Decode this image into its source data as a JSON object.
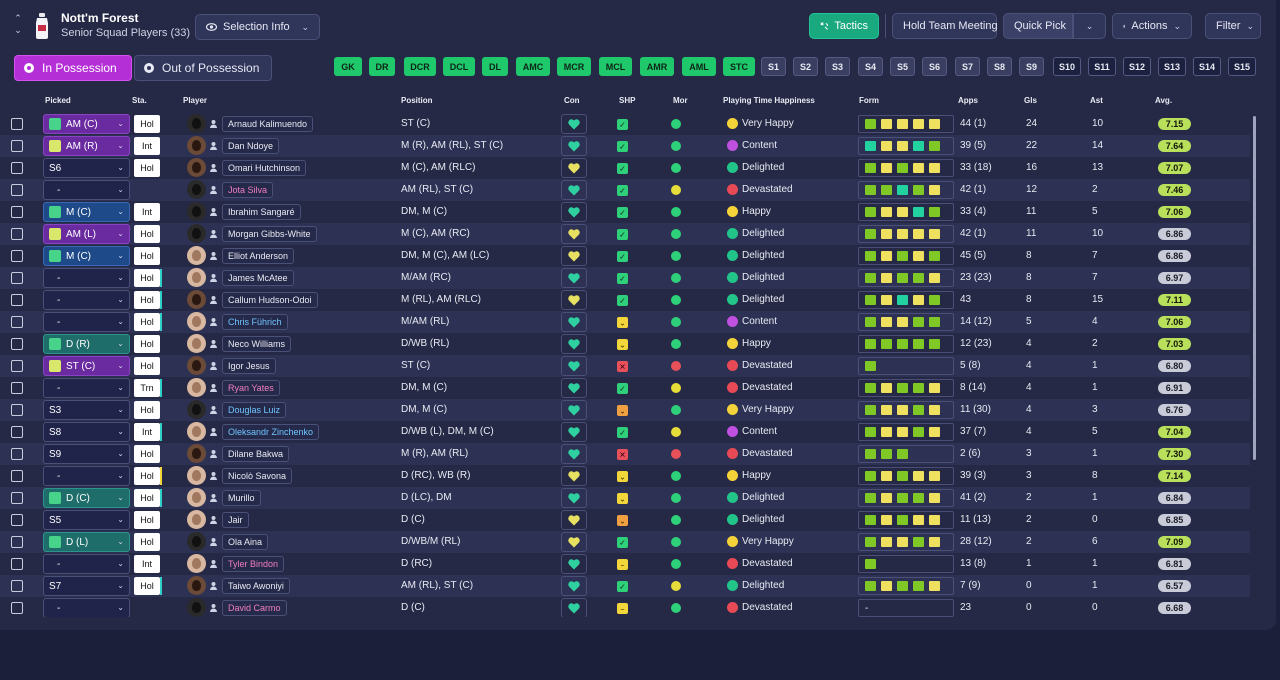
{
  "header": {
    "club_name": "Nott'm Forest",
    "club_sub": "Senior Squad Players (33)",
    "selection_info": "Selection Info",
    "tactics": "Tactics",
    "hold_team_meeting": "Hold Team Meeting",
    "quick_pick": "Quick Pick",
    "actions": "Actions",
    "filter": "Filter"
  },
  "tabs": {
    "in_possession": "In Possession",
    "out_of_possession": "Out of Possession"
  },
  "position_chips": [
    "GK",
    "DR",
    "DCR",
    "DCL",
    "DL",
    "AMC",
    "MCR",
    "MCL",
    "AMR",
    "AML",
    "STC"
  ],
  "set_chips": [
    "S1",
    "S2",
    "S3",
    "S4",
    "S5",
    "S6",
    "S7",
    "S8",
    "S9",
    "S10",
    "S11",
    "S12",
    "S13",
    "S14",
    "S15"
  ],
  "columns": {
    "picked": "Picked",
    "sta": "Sta.",
    "player": "Player",
    "position": "Position",
    "con": "Con",
    "shp": "SHP",
    "mor": "Mor",
    "pth": "Playing Time Happiness",
    "form": "Form",
    "apps": "Apps",
    "gls": "Gls",
    "ast": "Ast",
    "avg": "Avg."
  },
  "colors": {
    "accent_purple": "#b52fd6",
    "tactics_green": "#1aa87f",
    "chip_green": "#1fc86b",
    "form_green": "#7fc826",
    "form_yellow": "#f0e060"
  },
  "players": [
    {
      "picked": "AM (C)",
      "pick_style": "purple",
      "sta": "Hol",
      "name": "Arnaud Kalimuendo",
      "name_style": "",
      "position": "ST (C)",
      "shp": "ok",
      "mor": "good",
      "pth": "Very Happy",
      "pth_c": "#f4d23a",
      "form": [
        "g",
        "y",
        "y",
        "y",
        "y"
      ],
      "apps": "44 (1)",
      "gls": "24",
      "ast": "10",
      "avg": "7.15",
      "avg_s": "g",
      "face": "dark"
    },
    {
      "picked": "AM (R)",
      "pick_style": "purple",
      "sta": "Int",
      "name": "Dan Ndoye",
      "name_style": "",
      "position": "M (R), AM (RL), ST (C)",
      "shp": "ok",
      "mor": "good",
      "pth": "Content",
      "pth_c": "#c050e0",
      "form": [
        "t",
        "y",
        "y",
        "t",
        "g"
      ],
      "apps": "39 (5)",
      "gls": "22",
      "ast": "14",
      "avg": "7.64",
      "avg_s": "g",
      "face": ""
    },
    {
      "picked": "S6",
      "pick_style": "",
      "sta": "Hol",
      "name": "Omari Hutchinson",
      "name_style": "",
      "position": "M (C), AM (RLC)",
      "shp": "ok",
      "mor": "good",
      "pth": "Delighted",
      "pth_c": "#22c48a",
      "form": [
        "g",
        "y",
        "g",
        "y",
        "y"
      ],
      "apps": "33 (18)",
      "gls": "16",
      "ast": "13",
      "avg": "7.07",
      "avg_s": "g",
      "face": ""
    },
    {
      "picked": "-",
      "pick_style": "",
      "sta": "",
      "name": "Jota Silva",
      "name_style": "loan",
      "position": "AM (RL), ST (C)",
      "shp": "ok",
      "mor": "ok",
      "pth": "Devastated",
      "pth_c": "#e84a55",
      "form": [
        "g",
        "g",
        "t",
        "g",
        "y"
      ],
      "apps": "42 (1)",
      "gls": "12",
      "ast": "2",
      "avg": "7.46",
      "avg_s": "g",
      "face": "dark"
    },
    {
      "picked": "M (C)",
      "pick_style": "blue",
      "sta": "Int",
      "name": "Ibrahim Sangaré",
      "name_style": "",
      "position": "DM, M (C)",
      "shp": "ok",
      "mor": "good",
      "pth": "Happy",
      "pth_c": "#f4d23a",
      "form": [
        "g",
        "y",
        "y",
        "t",
        "g"
      ],
      "apps": "33 (4)",
      "gls": "11",
      "ast": "5",
      "avg": "7.06",
      "avg_s": "g",
      "face": "dark"
    },
    {
      "picked": "AM (L)",
      "pick_style": "purple",
      "sta": "Hol",
      "name": "Morgan Gibbs-White",
      "name_style": "",
      "position": "M (C), AM (RC)",
      "shp": "ok",
      "mor": "good",
      "pth": "Delighted",
      "pth_c": "#22c48a",
      "form": [
        "g",
        "y",
        "y",
        "y",
        "y"
      ],
      "apps": "42 (1)",
      "gls": "11",
      "ast": "10",
      "avg": "6.86",
      "avg_s": "s",
      "face": "dark"
    },
    {
      "picked": "M (C)",
      "pick_style": "blue",
      "sta": "Hol",
      "name": "Elliot Anderson",
      "name_style": "",
      "position": "DM, M (C), AM (LC)",
      "shp": "ok",
      "mor": "good",
      "pth": "Delighted",
      "pth_c": "#22c48a",
      "form": [
        "g",
        "y",
        "g",
        "y",
        "g"
      ],
      "apps": "45 (5)",
      "gls": "8",
      "ast": "7",
      "avg": "6.86",
      "avg_s": "s",
      "face": "light"
    },
    {
      "picked": "-",
      "pick_style": "",
      "sta": "Hol",
      "name": "James McAtee",
      "name_style": "",
      "position": "M/AM (RC)",
      "shp": "ok",
      "mor": "good",
      "pth": "Delighted",
      "pth_c": "#22c48a",
      "form": [
        "g",
        "y",
        "g",
        "g",
        "y"
      ],
      "apps": "23 (23)",
      "gls": "8",
      "ast": "7",
      "avg": "6.97",
      "avg_s": "s",
      "face": "light"
    },
    {
      "picked": "-",
      "pick_style": "",
      "sta": "Hol",
      "name": "Callum Hudson-Odoi",
      "name_style": "",
      "position": "M (RL), AM (RLC)",
      "shp": "ok",
      "mor": "good",
      "pth": "Delighted",
      "pth_c": "#22c48a",
      "form": [
        "g",
        "y",
        "t",
        "y",
        "g"
      ],
      "apps": "43",
      "gls": "8",
      "ast": "15",
      "avg": "7.11",
      "avg_s": "g",
      "face": ""
    },
    {
      "picked": "-",
      "pick_style": "",
      "sta": "Hol",
      "name": "Chris Führich",
      "name_style": "blue",
      "position": "M/AM (RL)",
      "shp": "warn",
      "mor": "good",
      "pth": "Content",
      "pth_c": "#c050e0",
      "form": [
        "g",
        "y",
        "y",
        "g",
        "g"
      ],
      "apps": "14 (12)",
      "gls": "5",
      "ast": "4",
      "avg": "7.06",
      "avg_s": "g",
      "face": "light"
    },
    {
      "picked": "D (R)",
      "pick_style": "teal",
      "sta": "Hol",
      "name": "Neco Williams",
      "name_style": "",
      "position": "D/WB (RL)",
      "shp": "warn",
      "mor": "good",
      "pth": "Happy",
      "pth_c": "#f4d23a",
      "form": [
        "g",
        "g",
        "g",
        "g",
        "g"
      ],
      "apps": "12 (23)",
      "gls": "4",
      "ast": "2",
      "avg": "7.03",
      "avg_s": "g",
      "face": "light"
    },
    {
      "picked": "ST (C)",
      "pick_style": "purple",
      "sta": "Hol",
      "name": "Igor Jesus",
      "name_style": "",
      "position": "ST (C)",
      "shp": "bad",
      "mor": "bad",
      "pth": "Devastated",
      "pth_c": "#e84a55",
      "form": [
        "g"
      ],
      "apps": "5 (8)",
      "gls": "4",
      "ast": "1",
      "avg": "6.80",
      "avg_s": "s",
      "face": ""
    },
    {
      "picked": "-",
      "pick_style": "",
      "sta": "Trn",
      "name": "Ryan Yates",
      "name_style": "loan",
      "position": "DM, M (C)",
      "shp": "ok",
      "mor": "ok",
      "pth": "Devastated",
      "pth_c": "#e84a55",
      "form": [
        "g",
        "y",
        "g",
        "g",
        "y"
      ],
      "apps": "8 (14)",
      "gls": "4",
      "ast": "1",
      "avg": "6.91",
      "avg_s": "s",
      "face": "light"
    },
    {
      "picked": "S3",
      "pick_style": "",
      "sta": "Hol",
      "name": "Douglas Luiz",
      "name_style": "blue",
      "position": "DM, M (C)",
      "shp": "warn2",
      "mor": "good",
      "pth": "Very Happy",
      "pth_c": "#f4d23a",
      "form": [
        "g",
        "y",
        "y",
        "g",
        "y"
      ],
      "apps": "11 (30)",
      "gls": "4",
      "ast": "3",
      "avg": "6.76",
      "avg_s": "s",
      "face": "dark"
    },
    {
      "picked": "S8",
      "pick_style": "",
      "sta": "Int",
      "name": "Oleksandr Zinchenko",
      "name_style": "blue",
      "position": "D/WB (L), DM, M (C)",
      "shp": "ok",
      "mor": "ok",
      "pth": "Content",
      "pth_c": "#c050e0",
      "form": [
        "g",
        "y",
        "y",
        "g",
        "y"
      ],
      "apps": "37 (7)",
      "gls": "4",
      "ast": "5",
      "avg": "7.04",
      "avg_s": "g",
      "face": "light"
    },
    {
      "picked": "S9",
      "pick_style": "",
      "sta": "Hol",
      "name": "Dilane Bakwa",
      "name_style": "",
      "position": "M (R), AM (RL)",
      "shp": "bad",
      "mor": "bad",
      "pth": "Devastated",
      "pth_c": "#e84a55",
      "form": [
        "g",
        "g",
        "g"
      ],
      "apps": "2 (6)",
      "gls": "3",
      "ast": "1",
      "avg": "7.30",
      "avg_s": "g",
      "face": ""
    },
    {
      "picked": "-",
      "pick_style": "",
      "sta": "Hol",
      "name": "Nicolò Savona",
      "name_style": "",
      "position": "D (RC), WB (R)",
      "shp": "warn",
      "mor": "good",
      "pth": "Happy",
      "pth_c": "#f4d23a",
      "form": [
        "g",
        "y",
        "g",
        "y",
        "y"
      ],
      "apps": "39 (3)",
      "gls": "3",
      "ast": "8",
      "avg": "7.14",
      "avg_s": "g",
      "face": "light"
    },
    {
      "picked": "D (C)",
      "pick_style": "teal",
      "sta": "Hol",
      "name": "Murillo",
      "name_style": "",
      "position": "D (LC), DM",
      "shp": "warn",
      "mor": "good",
      "pth": "Delighted",
      "pth_c": "#22c48a",
      "form": [
        "g",
        "y",
        "g",
        "g",
        "y"
      ],
      "apps": "41 (2)",
      "gls": "2",
      "ast": "1",
      "avg": "6.84",
      "avg_s": "s",
      "face": "light"
    },
    {
      "picked": "S5",
      "pick_style": "",
      "sta": "Hol",
      "name": "Jair",
      "name_style": "",
      "position": "D (C)",
      "shp": "warn2",
      "mor": "good",
      "pth": "Delighted",
      "pth_c": "#22c48a",
      "form": [
        "g",
        "y",
        "g",
        "y",
        "y"
      ],
      "apps": "11 (13)",
      "gls": "2",
      "ast": "0",
      "avg": "6.85",
      "avg_s": "s",
      "face": "light"
    },
    {
      "picked": "D (L)",
      "pick_style": "teal",
      "sta": "Hol",
      "name": "Ola Aina",
      "name_style": "",
      "position": "D/WB/M (RL)",
      "shp": "ok",
      "mor": "good",
      "pth": "Very Happy",
      "pth_c": "#f4d23a",
      "form": [
        "g",
        "y",
        "y",
        "g",
        "y"
      ],
      "apps": "28 (12)",
      "gls": "2",
      "ast": "6",
      "avg": "7.09",
      "avg_s": "g",
      "face": "dark"
    },
    {
      "picked": "-",
      "pick_style": "",
      "sta": "Int",
      "name": "Tyler Bindon",
      "name_style": "loan",
      "position": "D (RC)",
      "shp": "mid",
      "mor": "good",
      "pth": "Devastated",
      "pth_c": "#e84a55",
      "form": [
        "g"
      ],
      "apps": "13 (8)",
      "gls": "1",
      "ast": "1",
      "avg": "6.81",
      "avg_s": "s",
      "face": "light"
    },
    {
      "picked": "S7",
      "pick_style": "",
      "sta": "Hol",
      "name": "Taiwo Awoniyi",
      "name_style": "",
      "position": "AM (RL), ST (C)",
      "shp": "ok",
      "mor": "ok",
      "pth": "Delighted",
      "pth_c": "#22c48a",
      "form": [
        "g",
        "y",
        "g",
        "g",
        "y"
      ],
      "apps": "7 (9)",
      "gls": "0",
      "ast": "1",
      "avg": "6.57",
      "avg_s": "s",
      "face": ""
    },
    {
      "picked": "-",
      "pick_style": "",
      "sta": "",
      "name": "David Carmo",
      "name_style": "loan",
      "position": "D (C)",
      "shp": "mid",
      "mor": "good",
      "pth": "Devastated",
      "pth_c": "#e84a55",
      "form": [],
      "apps": "23",
      "gls": "0",
      "ast": "0",
      "avg": "6.68",
      "avg_s": "s",
      "face": "dark"
    }
  ]
}
